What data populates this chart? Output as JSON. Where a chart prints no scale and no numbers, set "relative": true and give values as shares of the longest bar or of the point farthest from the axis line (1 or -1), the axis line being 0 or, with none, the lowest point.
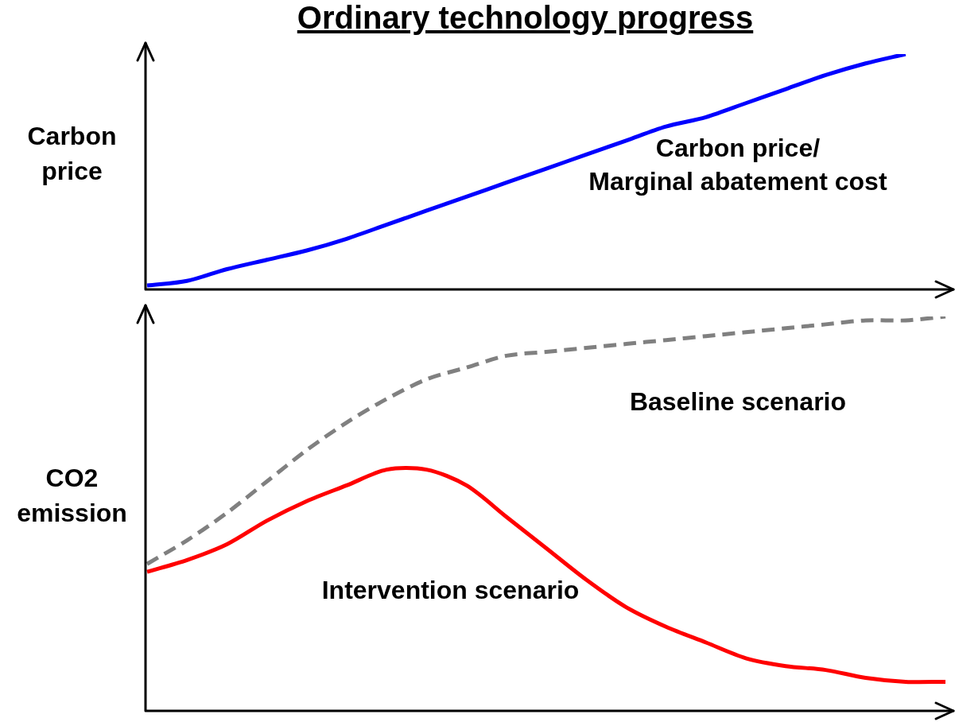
{
  "chart_data": [
    {
      "type": "line",
      "title": "Ordinary technology progress",
      "ylabel": "Carbon price",
      "relative": true,
      "categories": [
        null,
        null,
        null,
        null,
        null,
        null,
        null,
        null,
        null,
        null,
        null,
        null,
        null,
        null,
        null,
        null,
        null,
        null,
        null,
        null,
        null
      ],
      "series": [
        {
          "name": "Carbon price/\nMarginal abatement cost",
          "color": "#0000ff",
          "line_style": "solid",
          "values": [
            0.01,
            0.03,
            0.08,
            0.12,
            0.16,
            0.21,
            0.27,
            0.33,
            0.39,
            0.45,
            0.51,
            0.57,
            0.63,
            0.69,
            0.73,
            0.79,
            0.85,
            0.91,
            0.96,
            1.0,
            null
          ]
        }
      ]
    },
    {
      "type": "line",
      "ylabel": "CO2 emission",
      "relative": true,
      "categories": [
        null,
        null,
        null,
        null,
        null,
        null,
        null,
        null,
        null,
        null,
        null,
        null,
        null,
        null,
        null,
        null,
        null,
        null,
        null,
        null,
        null
      ],
      "series": [
        {
          "name": "Baseline scenario",
          "color": "#808080",
          "line_style": "dashed",
          "values": [
            0.37,
            0.43,
            0.5,
            0.58,
            0.66,
            0.73,
            0.79,
            0.84,
            0.87,
            0.9,
            0.91,
            0.92,
            0.93,
            0.94,
            0.95,
            0.96,
            0.97,
            0.98,
            0.99,
            0.99,
            1.0
          ]
        },
        {
          "name": "Intervention scenario",
          "color": "#ff0000",
          "line_style": "solid",
          "values": [
            0.35,
            0.38,
            0.42,
            0.48,
            0.53,
            0.57,
            0.61,
            0.61,
            0.57,
            0.49,
            0.41,
            0.33,
            0.26,
            0.21,
            0.17,
            0.13,
            0.11,
            0.1,
            0.08,
            0.07,
            0.07
          ]
        }
      ]
    }
  ]
}
